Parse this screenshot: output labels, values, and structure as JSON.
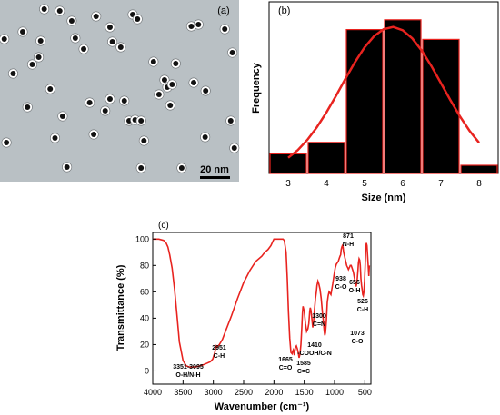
{
  "panels": {
    "a": {
      "label": "(a)",
      "scale_bar_label": "20 nm",
      "background_color": "#b9c0c4",
      "particles": [
        [
          0.018,
          0.215
        ],
        [
          0.027,
          0.785
        ],
        [
          0.055,
          0.405
        ],
        [
          0.095,
          0.175
        ],
        [
          0.115,
          0.59
        ],
        [
          0.135,
          0.355
        ],
        [
          0.162,
          0.315
        ],
        [
          0.17,
          0.225
        ],
        [
          0.185,
          0.05
        ],
        [
          0.21,
          0.49
        ],
        [
          0.23,
          0.76
        ],
        [
          0.25,
          0.06
        ],
        [
          0.262,
          0.64
        ],
        [
          0.28,
          0.92
        ],
        [
          0.3,
          0.115
        ],
        [
          0.315,
          0.21
        ],
        [
          0.35,
          0.27
        ],
        [
          0.375,
          0.565
        ],
        [
          0.392,
          0.74
        ],
        [
          0.402,
          0.09
        ],
        [
          0.44,
          0.61
        ],
        [
          0.46,
          0.15
        ],
        [
          0.46,
          0.545
        ],
        [
          0.47,
          0.23
        ],
        [
          0.505,
          0.26
        ],
        [
          0.52,
          0.555
        ],
        [
          0.54,
          0.665
        ],
        [
          0.555,
          0.08
        ],
        [
          0.565,
          0.66
        ],
        [
          0.575,
          0.105
        ],
        [
          0.59,
          0.665
        ],
        [
          0.59,
          0.925
        ],
        [
          0.602,
          0.775
        ],
        [
          0.642,
          0.34
        ],
        [
          0.665,
          0.52
        ],
        [
          0.688,
          0.44
        ],
        [
          0.7,
          0.48
        ],
        [
          0.712,
          0.58
        ],
        [
          0.72,
          0.465
        ],
        [
          0.735,
          0.35
        ],
        [
          0.76,
          0.925
        ],
        [
          0.8,
          0.145
        ],
        [
          0.81,
          0.455
        ],
        [
          0.83,
          0.135
        ],
        [
          0.86,
          0.5
        ],
        [
          0.858,
          0.755
        ],
        [
          0.94,
          0.16
        ],
        [
          0.965,
          0.665
        ],
        [
          0.972,
          0.29
        ],
        [
          0.98,
          0.815
        ]
      ]
    },
    "b": {
      "label": "(b)"
    },
    "c": {
      "label": "(c)"
    }
  },
  "chart_data": [
    {
      "type": "bar",
      "panel": "(b)",
      "categories": [
        "3",
        "4",
        "5",
        "6",
        "7",
        "8"
      ],
      "values": [
        12,
        19,
        88,
        94,
        82,
        5
      ],
      "xlabel": "Size (nm)",
      "ylabel": "Frequency",
      "ylim": [
        0,
        105
      ],
      "bar_color": "#000000",
      "bar_edge_color": "#e8231f",
      "fit_curve": {
        "type": "gaussian",
        "x": [
          3.0,
          3.25,
          3.5,
          3.75,
          4.0,
          4.25,
          4.5,
          4.75,
          5.0,
          5.25,
          5.5,
          5.75,
          6.0,
          6.25,
          6.5,
          6.75,
          7.0,
          7.25,
          7.5,
          7.75,
          8.0
        ],
        "y": [
          9.6,
          14.3,
          20.5,
          28.2,
          37.3,
          47.4,
          58.0,
          68.1,
          77.1,
          84.0,
          88.3,
          89.6,
          87.6,
          82.6,
          75.1,
          65.7,
          55.3,
          44.8,
          34.9,
          26.1,
          18.8
        ],
        "color": "#e8231f"
      },
      "grid": false
    },
    {
      "type": "line",
      "panel": "(c)",
      "xlabel": "Wavenumber (cm⁻¹)",
      "ylabel": "Transmittance (%)",
      "xlim": [
        4000,
        400
      ],
      "ylim": [
        -10,
        105
      ],
      "x_ticks": [
        4000,
        3500,
        3000,
        2500,
        2000,
        1500,
        1000,
        500
      ],
      "x_tick_labels": [
        "4000",
        "3500",
        "3000",
        "2500",
        "2000",
        "1500",
        "1000",
        "500"
      ],
      "y_ticks": [
        0,
        20,
        40,
        60,
        80,
        100
      ],
      "y_tick_labels": [
        "0",
        "20",
        "40",
        "60",
        "80",
        "100"
      ],
      "line_color": "#e8231f",
      "series": [
        {
          "x": [
            4000,
            3900,
            3820,
            3780,
            3750,
            3720,
            3680,
            3640,
            3600,
            3560,
            3500,
            3450,
            3400,
            3350,
            3300,
            3250,
            3200,
            3150,
            3100,
            3050,
            3010,
            2975,
            2960,
            2951,
            2940,
            2900,
            2850,
            2800,
            2700,
            2600,
            2500,
            2400,
            2300,
            2200,
            2150,
            2100,
            2050,
            2000,
            1950,
            1900,
            1850,
            1830,
            1800,
            1780,
            1760,
            1740,
            1720,
            1700,
            1690,
            1680,
            1670,
            1665,
            1655,
            1645,
            1630,
            1615,
            1600,
            1585,
            1570,
            1555,
            1540,
            1530,
            1520,
            1500,
            1480,
            1460,
            1440,
            1425,
            1410,
            1400,
            1390,
            1375,
            1360,
            1345,
            1330,
            1315,
            1300,
            1290,
            1275,
            1260,
            1240,
            1220,
            1200,
            1185,
            1170,
            1160,
            1150,
            1135,
            1120,
            1105,
            1090,
            1073,
            1060,
            1045,
            1030,
            1010,
            990,
            970,
            955,
            938,
            925,
            910,
            900,
            890,
            880,
            871,
            860,
            850,
            840,
            830,
            820,
            810,
            800,
            790,
            780,
            770,
            760,
            750,
            740,
            725,
            710,
            690,
            670,
            656,
            645,
            635,
            625,
            615,
            605,
            595,
            585,
            575,
            565,
            555,
            545,
            535,
            526,
            515,
            505,
            495,
            485,
            475,
            465,
            455,
            445,
            435,
            425
          ],
          "y": [
            100,
            100,
            99,
            97,
            94,
            88,
            78,
            62,
            42,
            22,
            8,
            4,
            3,
            3,
            3,
            3.5,
            4,
            5,
            6,
            7,
            9,
            14,
            18,
            19,
            18,
            20,
            24,
            30,
            42,
            55,
            67,
            76,
            83,
            87,
            90,
            92,
            95,
            100,
            100,
            100,
            100,
            99,
            90,
            70,
            45,
            25,
            14,
            13,
            15,
            16,
            14,
            12,
            15,
            18,
            19,
            17,
            14,
            10,
            13,
            20,
            33,
            44,
            49,
            45,
            36,
            30,
            32,
            36,
            45,
            48,
            46,
            40,
            33,
            38,
            47,
            55,
            60,
            65,
            68,
            66,
            62,
            55,
            44,
            38,
            30,
            27,
            29,
            38,
            52,
            57,
            60,
            59,
            58,
            62,
            66,
            72,
            78,
            81,
            82,
            83,
            85,
            87,
            88,
            92,
            94,
            95,
            94,
            90,
            88,
            86,
            84,
            82,
            80,
            79,
            78,
            77,
            78,
            79,
            80,
            80,
            78,
            75,
            70,
            66,
            64,
            66,
            70,
            76,
            82,
            85,
            84,
            80,
            70,
            65,
            62,
            58,
            57,
            60,
            68,
            80,
            92,
            97,
            95,
            88,
            80,
            72,
            80
          ]
        }
      ],
      "annotations": [
        {
          "lines": [
            "3351-3095",
            "O-H/N-H"
          ],
          "x": 3350,
          "y": 3
        },
        {
          "lines": [
            "2951",
            "C-H"
          ],
          "x": 2951,
          "y": 19
        },
        {
          "lines": [
            "1665",
            "C=O"
          ],
          "x": 1665,
          "y": 12
        },
        {
          "lines": [
            "1585",
            "C=C"
          ],
          "x": 1585,
          "y": 10
        },
        {
          "lines": [
            "1410",
            "-COOH/C-N"
          ],
          "x": 1410,
          "y": 45
        },
        {
          "lines": [
            "1300",
            "C=N"
          ],
          "x": 1300,
          "y": 60
        },
        {
          "lines": [
            "1073",
            "C-O"
          ],
          "x": 1073,
          "y": 59
        },
        {
          "lines": [
            "938",
            "C-O"
          ],
          "x": 938,
          "y": 83
        },
        {
          "lines": [
            "871",
            "N-H"
          ],
          "x": 871,
          "y": 95
        },
        {
          "lines": [
            "656",
            "O-H"
          ],
          "x": 656,
          "y": 64
        },
        {
          "lines": [
            "526",
            "C-H"
          ],
          "x": 526,
          "y": 57
        }
      ],
      "grid": false
    }
  ]
}
